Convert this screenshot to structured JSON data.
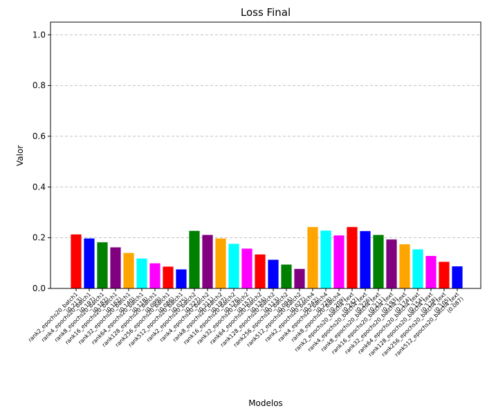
{
  "chart_data": {
    "type": "bar",
    "title": "Loss Final",
    "xlabel": "Modelos",
    "ylabel": "Valor",
    "ylim": [
      0,
      1.05
    ],
    "yticks": [
      0.0,
      0.2,
      0.4,
      0.6,
      0.8,
      1.0
    ],
    "ytick_labels": [
      "0.0",
      "0.2",
      "0.4",
      "0.6",
      "0.8",
      "1.0"
    ],
    "grid": "y-dashed",
    "categories": [
      "rank2_epochs20_batch1\n(0.213)",
      "rank4_epochs20_batch1\n(0.197)",
      "rank8_epochs20_batch1\n(0.182)",
      "rank16_epochs20_batch1\n(0.162)",
      "rank32_epochs20_batch1\n(0.140)",
      "rank64_epochs20_batch1\n(0.118)",
      "rank128_epochs20_batch1\n(0.099)",
      "rank256_epochs20_batch1\n(0.086)",
      "rank512_epochs20_batch1\n(0.075)",
      "rank2_epochs20_batch2\n(0.227)",
      "rank4_epochs20_batch2\n(0.211)",
      "rank8_epochs20_batch2\n(0.197)",
      "rank16_epochs20_batch2\n(0.176)",
      "rank32_epochs20_batch2\n(0.157)",
      "rank64_epochs20_batch2\n(0.134)",
      "rank128_epochs20_batch2\n(0.113)",
      "rank256_epochs20_batch2\n(0.094)",
      "rank512_epochs20_batch2\n(0.077)",
      "rank2_epochs20_batch4\n(0.242)",
      "rank4_epochs20_batch4\n(0.228)",
      "rank8_epochs20_batch4\n(0.209)",
      "rank2_epochs20_batch4_text\n(0.242)",
      "rank4_epochs20_batch4_text\n(0.226)",
      "rank8_epochs20_batch4_text\n(0.211)",
      "rank16_epochs20_batch4_text\n(0.193)",
      "rank32_epochs20_batch4_text\n(0.174)",
      "rank64_epochs20_batch4_text\n(0.154)",
      "rank128_epochs20_batch4_text\n(0.128)",
      "rank256_epochs20_batch4_text\n(0.105)",
      "rank512_epochs20_batch4_text\n(0.087)"
    ],
    "values": [
      0.213,
      0.197,
      0.182,
      0.162,
      0.14,
      0.118,
      0.099,
      0.086,
      0.075,
      0.227,
      0.211,
      0.197,
      0.176,
      0.157,
      0.134,
      0.113,
      0.094,
      0.077,
      0.242,
      0.228,
      0.209,
      0.242,
      0.226,
      0.211,
      0.193,
      0.174,
      0.154,
      0.128,
      0.105,
      0.087
    ],
    "colors": [
      "#ff0000",
      "#0000ff",
      "#008000",
      "#800080",
      "#ffa500",
      "#00ffff",
      "#ff00ff",
      "#ff0000",
      "#0000ff",
      "#008000",
      "#800080",
      "#ffa500",
      "#00ffff",
      "#ff00ff",
      "#ff0000",
      "#0000ff",
      "#008000",
      "#800080",
      "#ffa500",
      "#00ffff",
      "#ff00ff",
      "#ff0000",
      "#0000ff",
      "#008000",
      "#800080",
      "#ffa500",
      "#00ffff",
      "#ff00ff",
      "#ff0000",
      "#0000ff"
    ]
  }
}
